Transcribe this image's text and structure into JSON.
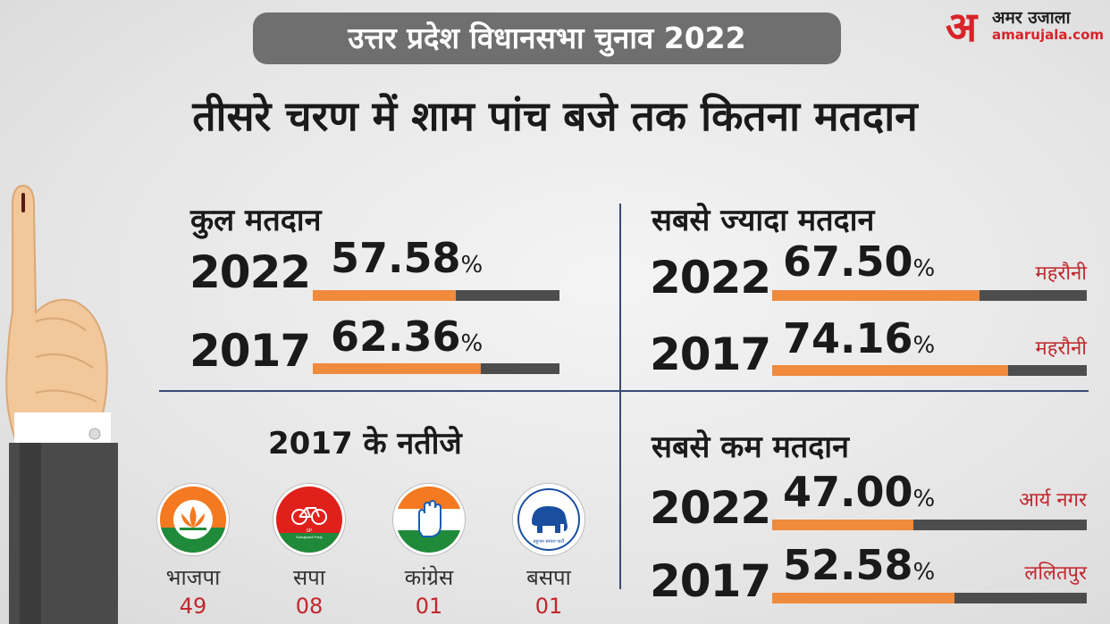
{
  "header": {
    "pill": "उत्तर प्रदेश विधानसभा चुनाव 2022",
    "brand_hindi": "अमर उजाला",
    "brand_letter": "अ",
    "brand_domain": "amarujala.com",
    "headline": "तीसरे चरण में शाम पांच बजे तक कितना मतदान"
  },
  "colors": {
    "accent": "#f08a3c",
    "bar_track": "#4d4d4d",
    "place": "#c2272d",
    "divider": "#3a4a78",
    "pill": "#6f6f6f"
  },
  "total": {
    "title": "कुल मतदान",
    "rows": [
      {
        "year": "2022",
        "value": "57.58",
        "unit": "%",
        "fraction": 0.58
      },
      {
        "year": "2017",
        "value": "62.36",
        "unit": "%",
        "fraction": 0.68
      }
    ]
  },
  "highest": {
    "title": "सबसे ज्यादा मतदान",
    "rows": [
      {
        "year": "2022",
        "value": "67.50",
        "unit": "%",
        "place": "महरौनी",
        "fraction": 0.66
      },
      {
        "year": "2017",
        "value": "74.16",
        "unit": "%",
        "place": "महरौनी",
        "fraction": 0.75
      }
    ]
  },
  "lowest": {
    "title": "सबसे कम मतदान",
    "rows": [
      {
        "year": "2022",
        "value": "47.00",
        "unit": "%",
        "place": "आर्य नगर",
        "fraction": 0.45
      },
      {
        "year": "2017",
        "value": "52.58",
        "unit": "%",
        "place": "ललितपुर",
        "fraction": 0.58
      }
    ]
  },
  "results": {
    "title": "2017 के नतीजे",
    "parties": [
      {
        "name": "भाजपा",
        "seats": "49",
        "icon": "lotus-icon"
      },
      {
        "name": "सपा",
        "seats": "08",
        "icon": "bicycle-icon",
        "logo_text": "Samajwadi Party",
        "logo_abbr": "SP"
      },
      {
        "name": "कांग्रेस",
        "seats": "01",
        "icon": "hand-icon"
      },
      {
        "name": "बसपा",
        "seats": "01",
        "icon": "elephant-icon",
        "logo_text": "बहुजन समाज पार्टी"
      }
    ]
  }
}
